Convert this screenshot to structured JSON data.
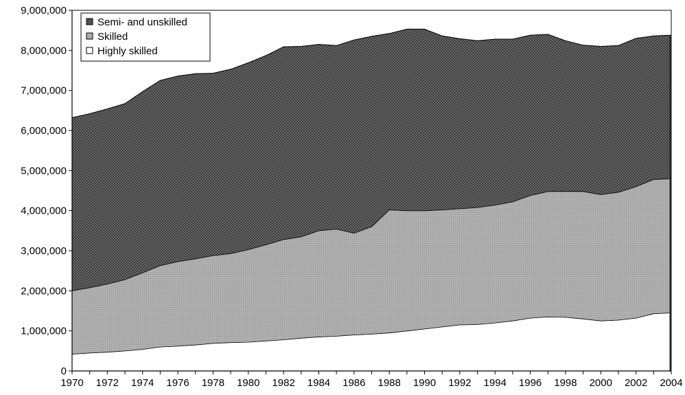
{
  "chart_data": {
    "type": "area",
    "stacked": true,
    "title": "",
    "xlabel": "",
    "ylabel": "",
    "x": [
      1970,
      1971,
      1972,
      1973,
      1974,
      1975,
      1976,
      1977,
      1978,
      1979,
      1980,
      1981,
      1982,
      1983,
      1984,
      1985,
      1986,
      1987,
      1988,
      1989,
      1990,
      1991,
      1992,
      1993,
      1994,
      1995,
      1996,
      1997,
      1998,
      1999,
      2000,
      2001,
      2002,
      2003,
      2004
    ],
    "xlim": [
      1970,
      2004
    ],
    "ylim": [
      0,
      9000000
    ],
    "x_tick_labels": [
      "1970",
      "1972",
      "1974",
      "1976",
      "1978",
      "1980",
      "1982",
      "1984",
      "1986",
      "1988",
      "1990",
      "1992",
      "1994",
      "1996",
      "1998",
      "2000",
      "2002",
      "2004"
    ],
    "y_tick_labels": [
      "0",
      "1,000,000",
      "2,000,000",
      "3,000,000",
      "4,000,000",
      "5,000,000",
      "6,000,000",
      "7,000,000",
      "8,000,000",
      "9,000,000"
    ],
    "legend_position": "top-left",
    "series": [
      {
        "name": "Highly skilled",
        "color": "#ffffff",
        "values": [
          420000,
          450000,
          470000,
          500000,
          540000,
          600000,
          620000,
          650000,
          690000,
          710000,
          720000,
          750000,
          780000,
          820000,
          850000,
          870000,
          900000,
          920000,
          950000,
          1000000,
          1050000,
          1100000,
          1150000,
          1160000,
          1200000,
          1250000,
          1320000,
          1350000,
          1340000,
          1300000,
          1250000,
          1270000,
          1320000,
          1430000,
          1450000
        ]
      },
      {
        "name": "Skilled",
        "color": "#c4c4c4",
        "values": [
          1580000,
          1630000,
          1700000,
          1780000,
          1910000,
          2030000,
          2110000,
          2150000,
          2190000,
          2220000,
          2310000,
          2400000,
          2500000,
          2530000,
          2650000,
          2670000,
          2540000,
          2680000,
          3070000,
          3000000,
          2950000,
          2920000,
          2900000,
          2920000,
          2940000,
          2970000,
          3060000,
          3130000,
          3140000,
          3180000,
          3150000,
          3190000,
          3280000,
          3350000,
          3350000
        ]
      },
      {
        "name": "Semi- and unskilled",
        "color": "#555555",
        "values": [
          4320000,
          4340000,
          4370000,
          4390000,
          4520000,
          4620000,
          4630000,
          4620000,
          4550000,
          4600000,
          4660000,
          4720000,
          4810000,
          4750000,
          4650000,
          4580000,
          4820000,
          4750000,
          4400000,
          4530000,
          4530000,
          4340000,
          4240000,
          4160000,
          4140000,
          4060000,
          4000000,
          3920000,
          3760000,
          3650000,
          3700000,
          3660000,
          3700000,
          3580000,
          3580000
        ]
      }
    ]
  }
}
